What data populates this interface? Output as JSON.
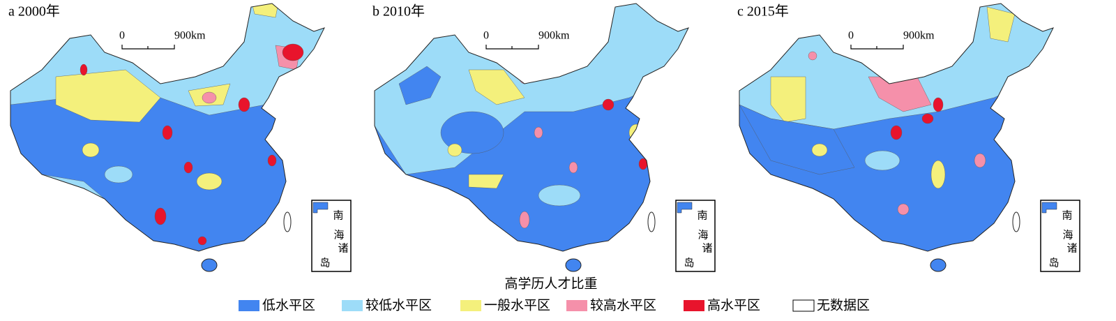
{
  "panels": [
    {
      "label": "a 2000年"
    },
    {
      "label": "b 2010年"
    },
    {
      "label": "c 2015年"
    }
  ],
  "scale_bar": {
    "start": "0",
    "end": "900km"
  },
  "inset": {
    "labels": [
      "南",
      "海",
      "诸",
      "岛"
    ]
  },
  "legend": {
    "title": "高学历人才比重",
    "items": [
      {
        "label": "低水平区",
        "color": "#4285f0"
      },
      {
        "label": "较低水平区",
        "color": "#9ddcf8"
      },
      {
        "label": "一般水平区",
        "color": "#f4f07c"
      },
      {
        "label": "较高水平区",
        "color": "#f590aa"
      },
      {
        "label": "高水平区",
        "color": "#e8142c"
      },
      {
        "label": "无数据区",
        "color": "#ffffff"
      }
    ]
  }
}
